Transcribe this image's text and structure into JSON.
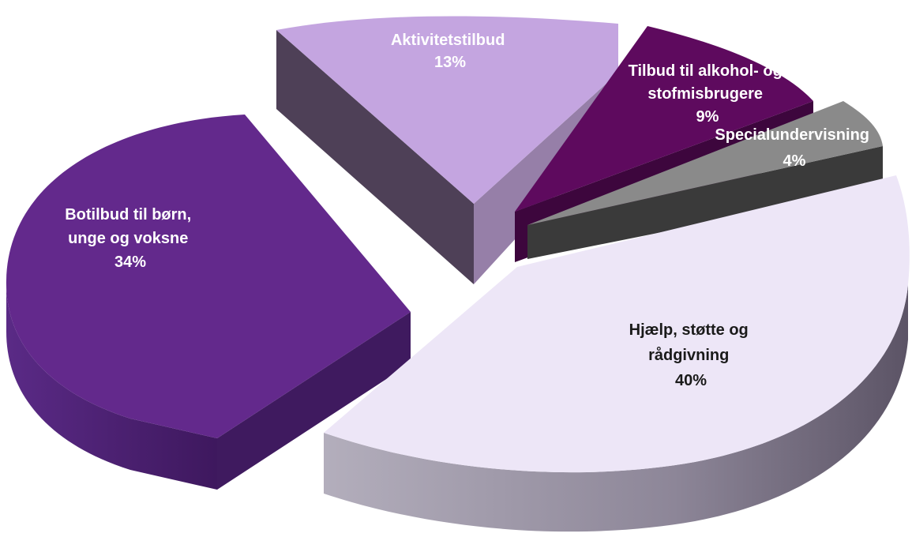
{
  "chart_data": {
    "type": "pie",
    "style": "3d-exploded",
    "slices": [
      {
        "label_lines": [
          "Hjælp, støtte og",
          "rådgivning"
        ],
        "pct_label": "40%",
        "value": 40,
        "color": "#EDE6F7",
        "side_color": "#9C94A8",
        "text_color": "#1a1a1a"
      },
      {
        "label_lines": [
          "Botilbud til børn,",
          "unge og voksne"
        ],
        "pct_label": "34%",
        "value": 34,
        "color": "#63298C",
        "side_color": "#4A1F6E",
        "text_color": "#ffffff"
      },
      {
        "label_lines": [
          "Aktivitetstilbud"
        ],
        "pct_label": "13%",
        "value": 13,
        "color": "#C4A5E0",
        "side_color": "#4E4057",
        "text_color": "#ffffff"
      },
      {
        "label_lines": [
          "Tilbud til alkohol- og",
          "stofmisbrugere"
        ],
        "pct_label": "9%",
        "value": 9,
        "color": "#5E0A5E",
        "side_color": "#3D063D",
        "text_color": "#ffffff"
      },
      {
        "label_lines": [
          "Specialundervisning"
        ],
        "pct_label": "4%",
        "value": 4,
        "color": "#8A8A8A",
        "side_color": "#3A3A3A",
        "text_color": "#ffffff"
      }
    ]
  }
}
